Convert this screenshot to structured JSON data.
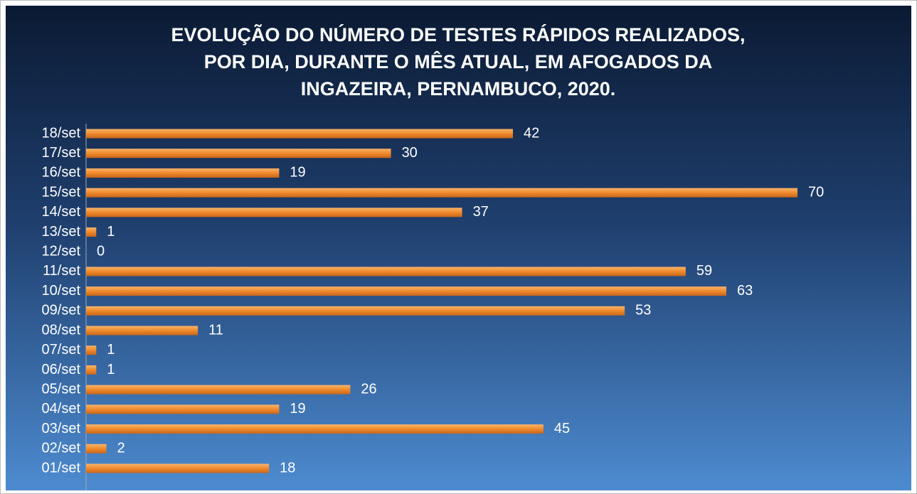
{
  "chart_data": {
    "type": "bar",
    "orientation": "horizontal",
    "title": [
      "EVOLUÇÃO DO NÚMERO DE TESTES RÁPIDOS REALIZADOS,",
      "POR DIA, DURANTE O MÊS ATUAL, EM AFOGADOS DA",
      "INGAZEIRA, PERNAMBUCO, 2020."
    ],
    "categories": [
      "01/set",
      "02/set",
      "03/set",
      "04/set",
      "05/set",
      "06/set",
      "07/set",
      "08/set",
      "09/set",
      "10/set",
      "11/set",
      "12/set",
      "13/set",
      "14/set",
      "15/set",
      "16/set",
      "17/set",
      "18/set"
    ],
    "values": [
      18,
      2,
      45,
      19,
      26,
      1,
      1,
      11,
      53,
      63,
      59,
      0,
      1,
      37,
      70,
      19,
      30,
      42
    ],
    "color": "#f08a2c",
    "grid": false
  }
}
